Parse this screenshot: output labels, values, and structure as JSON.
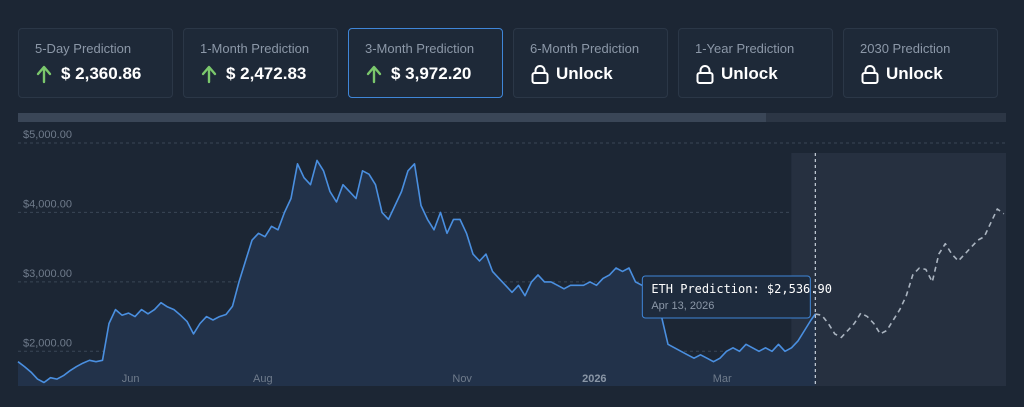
{
  "cards": [
    {
      "label": "5-Day Prediction",
      "value": "$ 2,360.86",
      "icon": "arrow-up-icon",
      "locked": false
    },
    {
      "label": "1-Month Prediction",
      "value": "$ 2,472.83",
      "icon": "arrow-up-icon",
      "locked": false
    },
    {
      "label": "3-Month Prediction",
      "value": "$ 3,972.20",
      "icon": "arrow-up-icon",
      "locked": false,
      "active": true
    },
    {
      "label": "6-Month Prediction",
      "value": "Unlock",
      "icon": "lock-icon",
      "locked": true
    },
    {
      "label": "1-Year Prediction",
      "value": "Unlock",
      "icon": "lock-icon",
      "locked": true
    },
    {
      "label": "2030 Prediction",
      "value": "Unlock",
      "icon": "lock-icon",
      "locked": true
    }
  ],
  "colors": {
    "accent": "#3f86d8",
    "up": "#7bc86c",
    "line": "#4a8fe0",
    "forecast": "#aab4c0",
    "background": "#1c2634"
  },
  "tooltip": {
    "title": "ETH Prediction: $2,536.90",
    "date": "Apr 13, 2026"
  },
  "chart_data": {
    "type": "line",
    "ylim": [
      1500,
      5000
    ],
    "yticks": [
      {
        "value": 5000,
        "label": "$5,000.00"
      },
      {
        "value": 4000,
        "label": "$4,000.00"
      },
      {
        "value": 3000,
        "label": "$3,000.00"
      },
      {
        "value": 2000,
        "label": "$2,000.00"
      }
    ],
    "xlim": [
      "2025-04-10",
      "2026-07-10"
    ],
    "xticks": [
      {
        "date": "2025-06-01",
        "label": "Jun",
        "bold": false
      },
      {
        "date": "2025-08-01",
        "label": "Aug",
        "bold": false
      },
      {
        "date": "2025-11-01",
        "label": "Nov",
        "bold": false
      },
      {
        "date": "2026-01-01",
        "label": "2026",
        "bold": true
      },
      {
        "date": "2026-03-01",
        "label": "Mar",
        "bold": false
      }
    ],
    "forecast_start": "2026-04-13",
    "series": [
      {
        "kind": "history",
        "points": [
          [
            "2025-04-10",
            1850
          ],
          [
            "2025-04-13",
            1780
          ],
          [
            "2025-04-16",
            1700
          ],
          [
            "2025-04-19",
            1600
          ],
          [
            "2025-04-22",
            1550
          ],
          [
            "2025-04-25",
            1620
          ],
          [
            "2025-04-28",
            1600
          ],
          [
            "2025-05-01",
            1650
          ],
          [
            "2025-05-04",
            1720
          ],
          [
            "2025-05-07",
            1780
          ],
          [
            "2025-05-10",
            1830
          ],
          [
            "2025-05-13",
            1870
          ],
          [
            "2025-05-16",
            1850
          ],
          [
            "2025-05-19",
            1870
          ],
          [
            "2025-05-22",
            2400
          ],
          [
            "2025-05-25",
            2600
          ],
          [
            "2025-05-28",
            2520
          ],
          [
            "2025-05-31",
            2550
          ],
          [
            "2025-06-03",
            2500
          ],
          [
            "2025-06-06",
            2600
          ],
          [
            "2025-06-09",
            2540
          ],
          [
            "2025-06-12",
            2600
          ],
          [
            "2025-06-15",
            2700
          ],
          [
            "2025-06-18",
            2640
          ],
          [
            "2025-06-21",
            2600
          ],
          [
            "2025-06-24",
            2520
          ],
          [
            "2025-06-27",
            2430
          ],
          [
            "2025-06-30",
            2250
          ],
          [
            "2025-07-03",
            2400
          ],
          [
            "2025-07-06",
            2500
          ],
          [
            "2025-07-09",
            2450
          ],
          [
            "2025-07-12",
            2500
          ],
          [
            "2025-07-15",
            2530
          ],
          [
            "2025-07-18",
            2650
          ],
          [
            "2025-07-21",
            3000
          ],
          [
            "2025-07-24",
            3300
          ],
          [
            "2025-07-27",
            3600
          ],
          [
            "2025-07-30",
            3700
          ],
          [
            "2025-08-02",
            3650
          ],
          [
            "2025-08-05",
            3800
          ],
          [
            "2025-08-08",
            3750
          ],
          [
            "2025-08-11",
            4000
          ],
          [
            "2025-08-14",
            4200
          ],
          [
            "2025-08-17",
            4700
          ],
          [
            "2025-08-20",
            4500
          ],
          [
            "2025-08-23",
            4400
          ],
          [
            "2025-08-26",
            4750
          ],
          [
            "2025-08-29",
            4600
          ],
          [
            "2025-09-01",
            4300
          ],
          [
            "2025-09-04",
            4150
          ],
          [
            "2025-09-07",
            4400
          ],
          [
            "2025-09-10",
            4300
          ],
          [
            "2025-09-13",
            4200
          ],
          [
            "2025-09-16",
            4600
          ],
          [
            "2025-09-19",
            4550
          ],
          [
            "2025-09-22",
            4400
          ],
          [
            "2025-09-25",
            4000
          ],
          [
            "2025-09-28",
            3900
          ],
          [
            "2025-10-01",
            4100
          ],
          [
            "2025-10-04",
            4300
          ],
          [
            "2025-10-07",
            4600
          ],
          [
            "2025-10-10",
            4700
          ],
          [
            "2025-10-13",
            4100
          ],
          [
            "2025-10-16",
            3900
          ],
          [
            "2025-10-19",
            3750
          ],
          [
            "2025-10-22",
            4000
          ],
          [
            "2025-10-25",
            3700
          ],
          [
            "2025-10-28",
            3900
          ],
          [
            "2025-10-31",
            3900
          ],
          [
            "2025-11-03",
            3700
          ],
          [
            "2025-11-06",
            3400
          ],
          [
            "2025-11-09",
            3300
          ],
          [
            "2025-11-12",
            3400
          ],
          [
            "2025-11-15",
            3150
          ],
          [
            "2025-11-18",
            3050
          ],
          [
            "2025-11-21",
            2950
          ],
          [
            "2025-11-24",
            2850
          ],
          [
            "2025-11-27",
            2950
          ],
          [
            "2025-11-30",
            2800
          ],
          [
            "2025-12-03",
            3000
          ],
          [
            "2025-12-06",
            3100
          ],
          [
            "2025-12-09",
            3000
          ],
          [
            "2025-12-12",
            3000
          ],
          [
            "2025-12-15",
            2950
          ],
          [
            "2025-12-18",
            2900
          ],
          [
            "2025-12-21",
            2950
          ],
          [
            "2025-12-24",
            2950
          ],
          [
            "2025-12-27",
            2950
          ],
          [
            "2025-12-30",
            3000
          ],
          [
            "2026-01-02",
            2950
          ],
          [
            "2026-01-05",
            3050
          ],
          [
            "2026-01-08",
            3100
          ],
          [
            "2026-01-11",
            3200
          ],
          [
            "2026-01-14",
            3150
          ],
          [
            "2026-01-17",
            3200
          ],
          [
            "2026-01-20",
            3000
          ],
          [
            "2026-01-23",
            2950
          ],
          [
            "2026-01-26",
            2900
          ],
          [
            "2026-01-29",
            2850
          ],
          [
            "2026-02-01",
            2500
          ],
          [
            "2026-02-04",
            2100
          ],
          [
            "2026-02-07",
            2050
          ],
          [
            "2026-02-10",
            2000
          ],
          [
            "2026-02-13",
            1950
          ],
          [
            "2026-02-16",
            1900
          ],
          [
            "2026-02-19",
            1950
          ],
          [
            "2026-02-22",
            1900
          ],
          [
            "2026-02-25",
            1850
          ],
          [
            "2026-02-28",
            1900
          ],
          [
            "2026-03-03",
            2000
          ],
          [
            "2026-03-06",
            2050
          ],
          [
            "2026-03-09",
            2000
          ],
          [
            "2026-03-12",
            2100
          ],
          [
            "2026-03-15",
            2050
          ],
          [
            "2026-03-18",
            2000
          ],
          [
            "2026-03-21",
            2050
          ],
          [
            "2026-03-24",
            2000
          ],
          [
            "2026-03-27",
            2100
          ],
          [
            "2026-03-30",
            2000
          ],
          [
            "2026-04-02",
            2050
          ],
          [
            "2026-04-05",
            2150
          ],
          [
            "2026-04-08",
            2300
          ],
          [
            "2026-04-11",
            2450
          ],
          [
            "2026-04-13",
            2537
          ]
        ]
      },
      {
        "kind": "forecast",
        "points": [
          [
            "2026-04-13",
            2537
          ],
          [
            "2026-04-16",
            2520
          ],
          [
            "2026-04-19",
            2400
          ],
          [
            "2026-04-22",
            2250
          ],
          [
            "2026-04-25",
            2200
          ],
          [
            "2026-04-28",
            2300
          ],
          [
            "2026-05-01",
            2400
          ],
          [
            "2026-05-04",
            2550
          ],
          [
            "2026-05-07",
            2500
          ],
          [
            "2026-05-10",
            2400
          ],
          [
            "2026-05-13",
            2250
          ],
          [
            "2026-05-16",
            2300
          ],
          [
            "2026-05-19",
            2450
          ],
          [
            "2026-05-22",
            2600
          ],
          [
            "2026-05-25",
            2800
          ],
          [
            "2026-05-28",
            3100
          ],
          [
            "2026-05-31",
            3200
          ],
          [
            "2026-06-03",
            3180
          ],
          [
            "2026-06-06",
            3000
          ],
          [
            "2026-06-09",
            3400
          ],
          [
            "2026-06-12",
            3550
          ],
          [
            "2026-06-15",
            3400
          ],
          [
            "2026-06-18",
            3300
          ],
          [
            "2026-06-21",
            3400
          ],
          [
            "2026-06-24",
            3500
          ],
          [
            "2026-06-27",
            3600
          ],
          [
            "2026-06-30",
            3650
          ],
          [
            "2026-07-03",
            3850
          ],
          [
            "2026-07-06",
            4050
          ],
          [
            "2026-07-09",
            3980
          ]
        ]
      }
    ]
  }
}
